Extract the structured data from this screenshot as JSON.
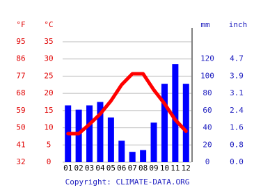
{
  "chart_data": {
    "type": "climate",
    "unit_labels": {
      "fahrenheit": "°F",
      "celsius": "°C",
      "mm": "mm",
      "inch": "inch"
    },
    "categories": [
      "01",
      "02",
      "03",
      "04",
      "05",
      "06",
      "07",
      "08",
      "09",
      "10",
      "11",
      "12"
    ],
    "series": [
      {
        "type": "bar",
        "axis": "y2",
        "color": "#0000ff",
        "values": [
          66,
          61,
          66,
          70,
          52,
          25,
          12,
          14,
          46,
          91,
          114,
          91
        ]
      },
      {
        "type": "line",
        "color": "#ff0000",
        "values": [
          8.3,
          8.3,
          11,
          14,
          17.8,
          22.5,
          25.7,
          25.7,
          21,
          17,
          12.3,
          9
        ]
      }
    ],
    "ylim": [
      0,
      35
    ],
    "yticks": [
      0,
      5,
      10,
      15,
      20,
      25,
      30,
      35
    ],
    "fticks": [
      {
        "value": 0,
        "label": "32"
      },
      {
        "value": 5,
        "label": "41"
      },
      {
        "value": 10,
        "label": "50"
      },
      {
        "value": 15,
        "label": "59"
      },
      {
        "value": 20,
        "label": "68"
      },
      {
        "value": 25,
        "label": "77"
      },
      {
        "value": 30,
        "label": "86"
      },
      {
        "value": 35,
        "label": "95"
      }
    ],
    "y2lim": [
      0,
      140
    ],
    "y2ticks": [
      0,
      20,
      40,
      60,
      80,
      100,
      120
    ],
    "inchticks": [
      {
        "value": 0,
        "label": "0.0"
      },
      {
        "value": 20,
        "label": "0.8"
      },
      {
        "value": 40,
        "label": "1.6"
      },
      {
        "value": 60,
        "label": "2.4"
      },
      {
        "value": 80,
        "label": "3.1"
      },
      {
        "value": 100,
        "label": "3.9"
      },
      {
        "value": 120,
        "label": "4.7"
      }
    ],
    "grid": true,
    "copyright": "Copyright: CLIMATE-DATA.ORG"
  }
}
